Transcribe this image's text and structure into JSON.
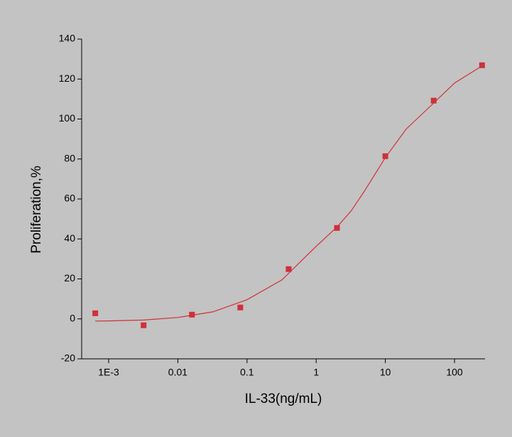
{
  "chart_data": {
    "type": "scatter",
    "x_label": "IL-33(ng/mL)",
    "y_label": "Proliferation,%",
    "x_scale": "log",
    "xlim": [
      0.000407,
      276
    ],
    "xticks": [
      {
        "value": 0.001,
        "label": "1E-3"
      },
      0.01,
      0.1,
      1,
      10,
      100
    ],
    "ylim": [
      -20,
      140
    ],
    "yticks": [
      -20,
      0,
      20,
      40,
      60,
      80,
      100,
      120,
      140
    ],
    "series": [
      {
        "type": "scatter",
        "marker": "square",
        "color": "#d03038",
        "x": [
          0.00064,
          0.0032,
          0.016,
          0.08,
          0.4,
          2,
          10,
          50,
          250
        ],
        "values": [
          2.8,
          -3.2,
          2.1,
          5.7,
          24.9,
          45.5,
          81.4,
          109.2,
          126.9
        ]
      },
      {
        "type": "line",
        "color": "#d03038",
        "x": [
          0.00064,
          0.001,
          0.0032,
          0.01,
          0.032,
          0.1,
          0.32,
          1,
          2,
          3.2,
          5,
          10,
          20,
          50,
          100,
          250
        ],
        "values": [
          -1.1,
          -1.0,
          -0.6,
          0.7,
          3.5,
          9.6,
          19.5,
          36.3,
          46,
          54,
          64,
          80.7,
          95,
          108,
          118,
          126.6
        ]
      }
    ]
  }
}
